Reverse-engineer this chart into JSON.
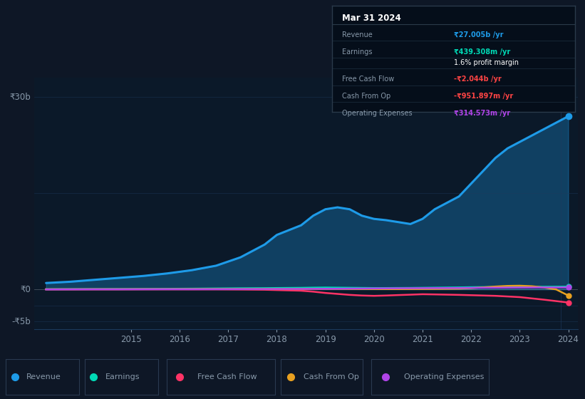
{
  "bg_color": "#0e1726",
  "chart_bg": "#0b1929",
  "grid_color": "#1c3a5c",
  "text_color": "#8899aa",
  "years": [
    2013.25,
    2013.75,
    2014.25,
    2014.75,
    2015.25,
    2015.75,
    2016.25,
    2016.75,
    2017.25,
    2017.75,
    2018.0,
    2018.5,
    2018.75,
    2019.0,
    2019.25,
    2019.5,
    2019.75,
    2020.0,
    2020.25,
    2020.5,
    2020.75,
    2021.0,
    2021.25,
    2021.75,
    2022.0,
    2022.25,
    2022.5,
    2022.75,
    2023.0,
    2023.25,
    2023.5,
    2023.75,
    2024.0
  ],
  "revenue": [
    1.0,
    1.2,
    1.5,
    1.8,
    2.1,
    2.5,
    3.0,
    3.7,
    5.0,
    7.0,
    8.5,
    10.0,
    11.5,
    12.5,
    12.8,
    12.5,
    11.5,
    11.0,
    10.8,
    10.5,
    10.2,
    11.0,
    12.5,
    14.5,
    16.5,
    18.5,
    20.5,
    22.0,
    23.0,
    24.0,
    25.0,
    26.0,
    27.0
  ],
  "earnings": [
    0.04,
    0.05,
    0.06,
    0.07,
    0.08,
    0.1,
    0.12,
    0.15,
    0.18,
    0.2,
    0.22,
    0.25,
    0.28,
    0.3,
    0.28,
    0.26,
    0.24,
    0.22,
    0.22,
    0.23,
    0.24,
    0.26,
    0.28,
    0.32,
    0.35,
    0.37,
    0.38,
    0.39,
    0.4,
    0.41,
    0.42,
    0.43,
    0.439
  ],
  "free_cash_flow": [
    0.01,
    0.01,
    0.01,
    0.01,
    0.01,
    0.01,
    0.0,
    0.0,
    -0.02,
    -0.05,
    -0.1,
    -0.2,
    -0.35,
    -0.55,
    -0.7,
    -0.85,
    -0.95,
    -1.0,
    -0.95,
    -0.88,
    -0.82,
    -0.75,
    -0.78,
    -0.85,
    -0.9,
    -0.95,
    -1.0,
    -1.1,
    -1.2,
    -1.4,
    -1.6,
    -1.82,
    -2.044
  ],
  "cash_from_op": [
    0.02,
    0.02,
    0.03,
    0.03,
    0.04,
    0.04,
    0.05,
    0.06,
    0.06,
    0.07,
    0.07,
    0.07,
    0.08,
    0.08,
    0.08,
    0.07,
    0.06,
    0.06,
    0.05,
    0.05,
    0.06,
    0.07,
    0.08,
    0.12,
    0.2,
    0.32,
    0.45,
    0.55,
    0.58,
    0.5,
    0.3,
    0.0,
    -0.952
  ],
  "operating_expenses": [
    -0.01,
    0.0,
    0.01,
    0.01,
    0.02,
    0.03,
    0.03,
    0.04,
    0.05,
    0.06,
    0.07,
    0.08,
    0.09,
    0.1,
    0.11,
    0.13,
    0.14,
    0.16,
    0.17,
    0.18,
    0.19,
    0.2,
    0.21,
    0.22,
    0.24,
    0.26,
    0.27,
    0.28,
    0.29,
    0.3,
    0.31,
    0.31,
    0.315
  ],
  "revenue_color": "#1e9be8",
  "earnings_color": "#00d9b5",
  "fcf_color": "#ff3366",
  "cashop_color": "#e8a020",
  "opex_color": "#b044e8",
  "ylim_min": -6.2,
  "ylim_max": 33.0,
  "legend_labels": [
    "Revenue",
    "Earnings",
    "Free Cash Flow",
    "Cash From Op",
    "Operating Expenses"
  ],
  "legend_colors": [
    "#1e9be8",
    "#00d9b5",
    "#ff3366",
    "#e8a020",
    "#b044e8"
  ]
}
